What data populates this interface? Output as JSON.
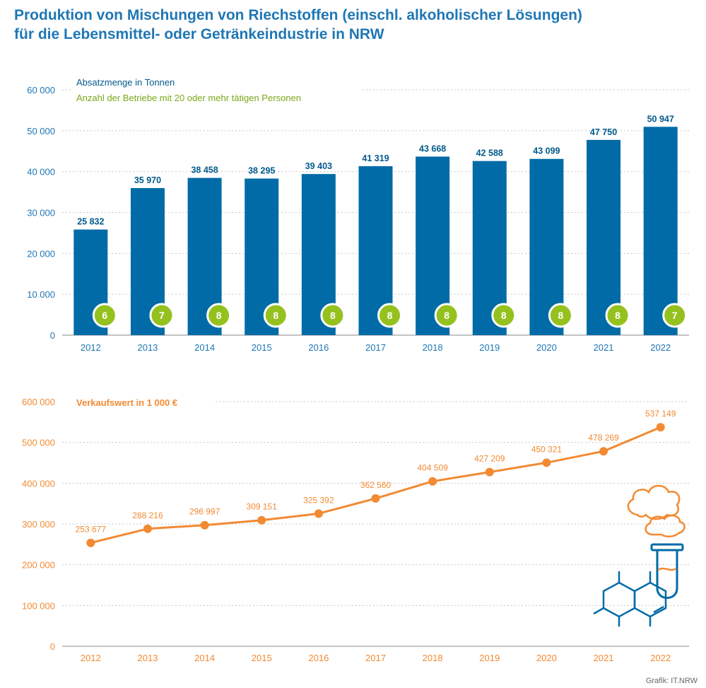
{
  "title_lines": [
    "Produktion von Mischungen von Riechstoffen (einschl. alkoholischer Lösungen)",
    "für die Lebensmittel- oder Getränkeindustrie in NRW"
  ],
  "credit": "Grafik: IT.NRW",
  "colors": {
    "bar": "#006ba6",
    "badge": "#95c11f",
    "line": "#f28a32"
  },
  "icons": [
    "cloud-icon",
    "test-tube-icon",
    "molecule-icon"
  ],
  "chart_data": [
    {
      "type": "bar",
      "categories": [
        "2012",
        "2013",
        "2014",
        "2015",
        "2016",
        "2017",
        "2018",
        "2019",
        "2020",
        "2021",
        "2022"
      ],
      "series": [
        {
          "name": "Absatzmenge in Tonnen",
          "values": [
            25832,
            35970,
            38458,
            38295,
            39403,
            41319,
            43668,
            42588,
            43099,
            47750,
            50947
          ],
          "labels": [
            "25 832",
            "35 970",
            "38 458",
            "38 295",
            "39 403",
            "41 319",
            "43 668",
            "42 588",
            "43 099",
            "47 750",
            "50 947"
          ]
        },
        {
          "name": "Anzahl der Betriebe mit 20 oder mehr tätigen Personen",
          "values": [
            6,
            7,
            8,
            8,
            8,
            8,
            8,
            8,
            8,
            8,
            7
          ]
        }
      ],
      "yticks": [
        "0",
        "10 000",
        "20 000",
        "30 000",
        "40 000",
        "50 000",
        "60 000"
      ],
      "ylim": [
        0,
        60000
      ],
      "grid": true
    },
    {
      "type": "line",
      "categories": [
        "2012",
        "2013",
        "2014",
        "2015",
        "2016",
        "2017",
        "2018",
        "2019",
        "2020",
        "2021",
        "2022"
      ],
      "series": [
        {
          "name": "Verkaufswert in 1 000 €",
          "values": [
            253677,
            288216,
            296997,
            309151,
            325392,
            362560,
            404509,
            427209,
            450321,
            478269,
            537149
          ],
          "labels": [
            "253 677",
            "288 216",
            "296 997",
            "309 151",
            "325 392",
            "362 560",
            "404 509",
            "427 209",
            "450 321",
            "478 269",
            "537 149"
          ]
        }
      ],
      "yticks": [
        "0",
        "100 000",
        "200 000",
        "300 000",
        "400 000",
        "500 000",
        "600 000"
      ],
      "ylim": [
        0,
        600000
      ],
      "grid": true
    }
  ]
}
